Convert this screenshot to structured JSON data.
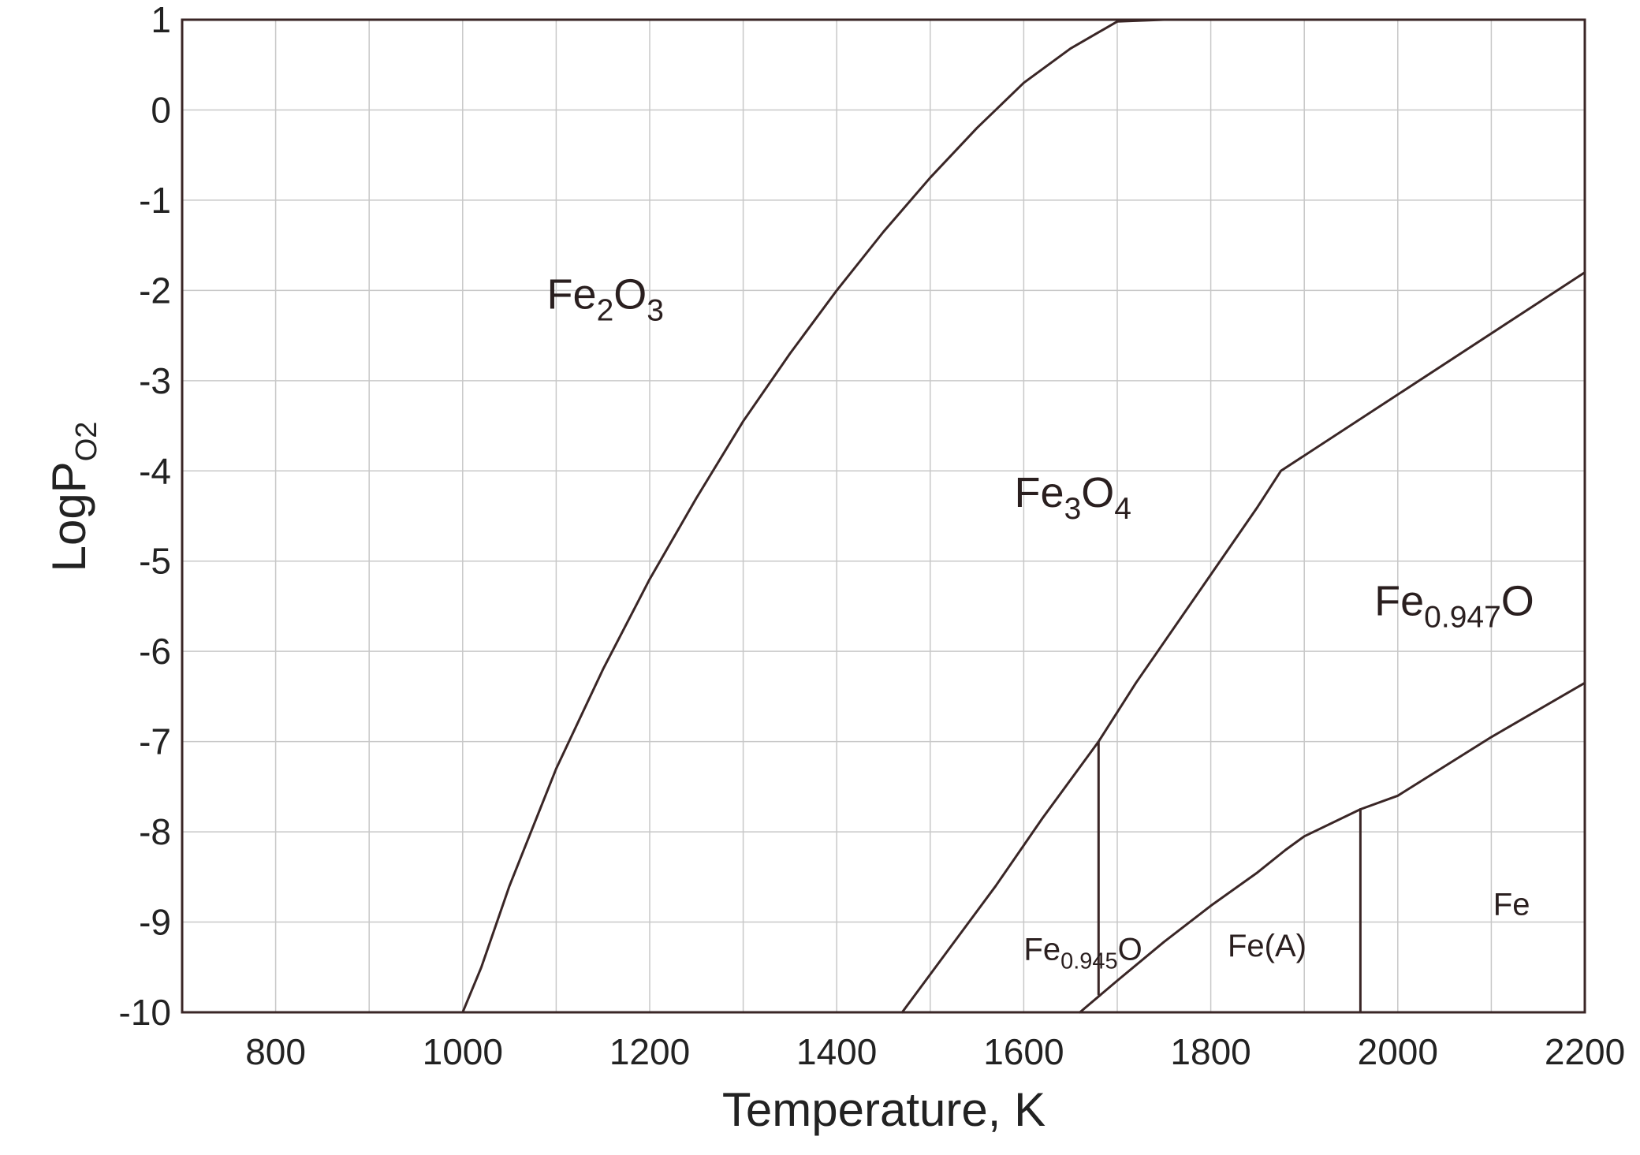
{
  "chart_data": {
    "type": "line",
    "title": "",
    "xlabel": "Temperature, K",
    "ylabel": {
      "base": "LogP",
      "sub": "O2"
    },
    "xlim": [
      700,
      2200
    ],
    "ylim": [
      -10,
      1
    ],
    "xticks": [
      800,
      1000,
      1200,
      1400,
      1600,
      1800,
      2000,
      2200
    ],
    "yticks": [
      1,
      0,
      -1,
      -2,
      -3,
      -4,
      -5,
      -6,
      -7,
      -8,
      -9,
      -10
    ],
    "grid": true,
    "legend": "none",
    "line_color": "#3a2626",
    "series": [
      {
        "x": [
          1000,
          1020,
          1050,
          1100,
          1150,
          1200,
          1250,
          1300,
          1350,
          1400,
          1450,
          1500,
          1550,
          1600,
          1650,
          1700,
          1750
        ],
        "y": [
          -10,
          -9.5,
          -8.6,
          -7.3,
          -6.2,
          -5.2,
          -4.3,
          -3.45,
          -2.7,
          -2.0,
          -1.35,
          -0.75,
          -0.2,
          0.3,
          0.68,
          0.98,
          1.0
        ]
      },
      {
        "x": [
          1470,
          1520,
          1570,
          1620,
          1680,
          1720,
          1770,
          1820,
          1850,
          1875,
          2200
        ],
        "y": [
          -10,
          -9.3,
          -8.6,
          -7.85,
          -7.0,
          -6.35,
          -5.6,
          -4.85,
          -4.4,
          -4.0,
          -1.8
        ]
      },
      {
        "x": [
          1680,
          1680
        ],
        "y": [
          -7.0,
          -9.8
        ]
      },
      {
        "x": [
          1660,
          1700,
          1750,
          1800,
          1850,
          1880,
          1900,
          1960,
          2000,
          2100,
          2200
        ],
        "y": [
          -10,
          -9.65,
          -9.22,
          -8.82,
          -8.45,
          -8.2,
          -8.05,
          -7.75,
          -7.6,
          -6.95,
          -6.35
        ]
      },
      {
        "x": [
          1960,
          1960
        ],
        "y": [
          -7.75,
          -10
        ]
      }
    ],
    "annotations": [
      {
        "base": "Fe",
        "parts": [
          {
            "text": "2",
            "sub": true
          },
          {
            "text": "O",
            "sub": false
          },
          {
            "text": "3",
            "sub": true
          }
        ],
        "x": 1090,
        "y": -2.2,
        "size": 54
      },
      {
        "base": "Fe",
        "parts": [
          {
            "text": "3",
            "sub": true
          },
          {
            "text": "O",
            "sub": false
          },
          {
            "text": "4",
            "sub": true
          }
        ],
        "x": 1590,
        "y": -4.4,
        "size": 54
      },
      {
        "base": "Fe",
        "parts": [
          {
            "text": "0.947",
            "sub": true
          },
          {
            "text": "O",
            "sub": false
          }
        ],
        "x": 1975,
        "y": -5.6,
        "size": 54
      },
      {
        "base": "Fe",
        "parts": [
          {
            "text": "0.945",
            "sub": true
          },
          {
            "text": "O",
            "sub": false
          }
        ],
        "x": 1600,
        "y": -9.42,
        "size": 40
      },
      {
        "base": "Fe(A)",
        "parts": [],
        "x": 1818,
        "y": -9.38,
        "size": 40
      },
      {
        "base": "Fe",
        "parts": [],
        "x": 2102,
        "y": -8.92,
        "size": 40
      }
    ]
  }
}
